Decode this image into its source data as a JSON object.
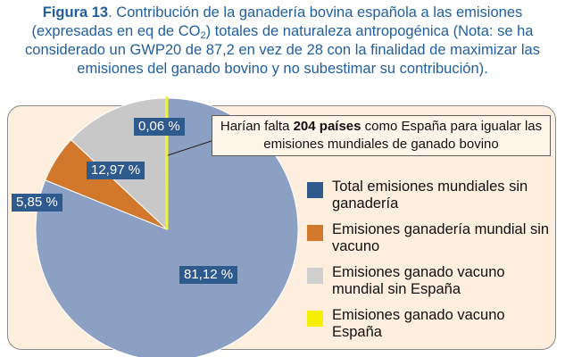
{
  "caption": {
    "figure_label": "Figura 13",
    "text_1": ". Contribución de la ganadería bovina española a las emisiones (expresadas en eq de CO",
    "subscript": "2",
    "text_2": ") totales de naturaleza antropogénica (Nota: se ha considerado un GWP20 de 87,2 en vez de 28 con la finalidad de maximizar las emisiones del ganado bovino y no subestimar su contribución)."
  },
  "note": {
    "prefix": "Harían falta ",
    "bold": "204 países",
    "suffix": " como España para igualar las emisiones mundiales de ganado bovino"
  },
  "chart_data": {
    "type": "pie",
    "slices": [
      {
        "name": "Total emisiones mundiales sin ganadería",
        "value": 81.12,
        "label": "81,12 %",
        "color": "#8ca0c4"
      },
      {
        "name": "Emisiones ganadería mundial sin vacuno",
        "value": 5.85,
        "label": "5,85 %",
        "color": "#d2782d"
      },
      {
        "name": "Emisiones ganado vacuno mundial sin España",
        "value": 12.97,
        "label": "12,97 %",
        "color": "#c8c8c8"
      },
      {
        "name": "Emisiones ganado vacuno España",
        "value": 0.06,
        "label": "0,06 %",
        "color": "#f2f229"
      }
    ],
    "legend_placement": "right",
    "legend_swatch_colors": [
      "#2f5a8e",
      "#d2782d",
      "#cfcfcf",
      "#f5f000"
    ],
    "label_box_color": "#2f5a8e"
  }
}
